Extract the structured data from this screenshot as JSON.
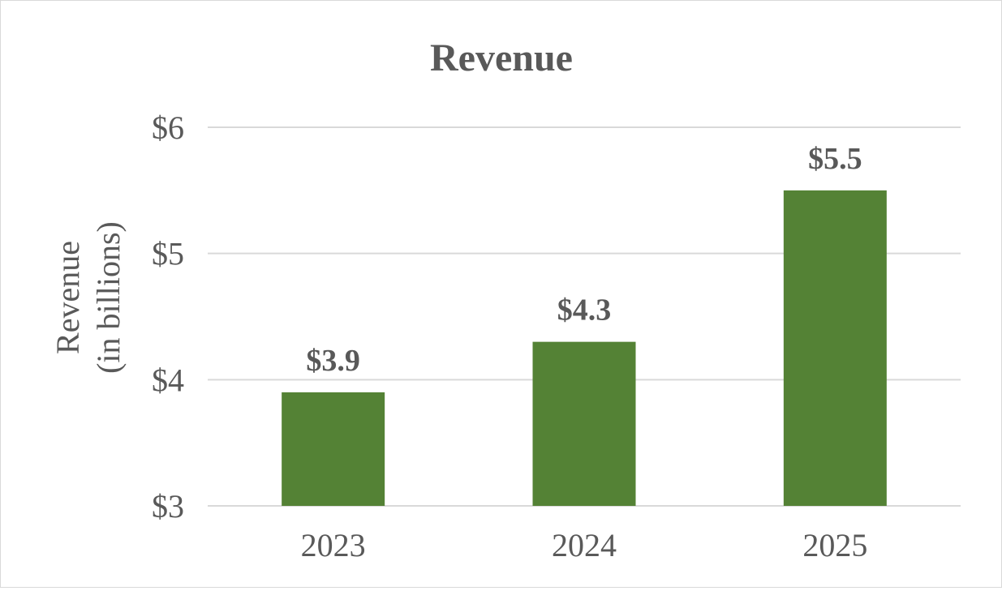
{
  "chart_data": {
    "type": "bar",
    "title": "Revenue",
    "ylabel_lines": [
      "Revenue",
      "(in billions)"
    ],
    "xlabel": "",
    "categories": [
      "2023",
      "2024",
      "2025"
    ],
    "values": [
      3.9,
      4.3,
      5.5
    ],
    "data_labels": [
      "$3.9",
      "$4.3",
      "$5.5"
    ],
    "ylim": [
      3,
      6
    ],
    "y_ticks": [
      3,
      4,
      5,
      6
    ],
    "y_tick_labels": [
      "$3",
      "$4",
      "$5",
      "$6"
    ],
    "grid": true,
    "legend": "none",
    "bar_color": "#548235"
  }
}
